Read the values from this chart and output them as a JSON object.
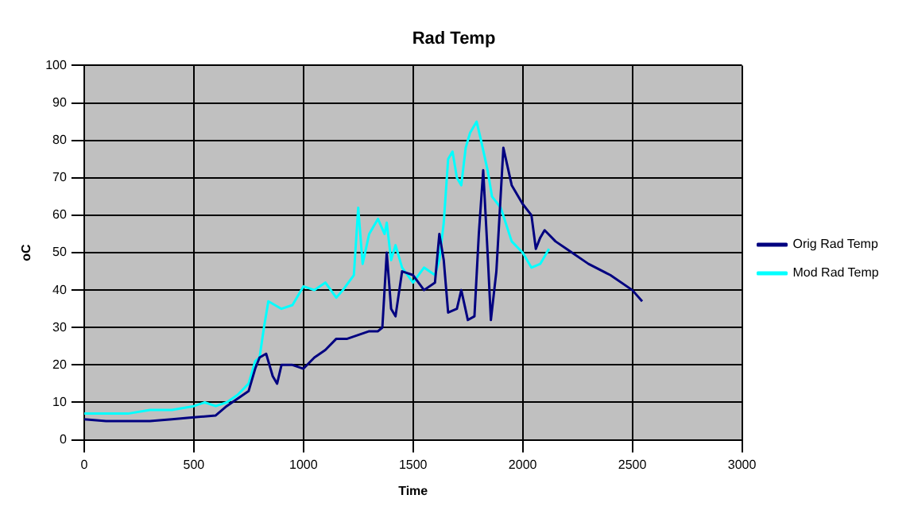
{
  "chart_data": {
    "type": "line",
    "title": "Rad Temp",
    "xlabel": "Time",
    "ylabel": "oC",
    "xlim": [
      0,
      3000
    ],
    "xticks": [
      0,
      500,
      1000,
      1500,
      2000,
      2500,
      3000
    ],
    "ylim": [
      0,
      100
    ],
    "yticks": [
      0,
      10,
      20,
      30,
      40,
      50,
      60,
      70,
      80,
      90,
      100
    ],
    "grid": true,
    "legend": "right",
    "marker": "none",
    "series": [
      {
        "name": "Orig Rad Temp",
        "color": "#000080",
        "x": [
          0,
          100,
          200,
          300,
          400,
          500,
          600,
          650,
          700,
          750,
          780,
          800,
          830,
          860,
          880,
          900,
          950,
          1000,
          1050,
          1100,
          1150,
          1200,
          1250,
          1300,
          1340,
          1360,
          1380,
          1400,
          1420,
          1450,
          1500,
          1550,
          1600,
          1620,
          1640,
          1660,
          1700,
          1720,
          1750,
          1780,
          1800,
          1820,
          1840,
          1855,
          1880,
          1912,
          1950,
          2000,
          2040,
          2060,
          2080,
          2100,
          2150,
          2200,
          2300,
          2400,
          2500,
          2545
        ],
        "values": [
          5.5,
          5,
          5,
          5,
          5.5,
          6,
          6.5,
          9,
          11,
          13,
          19,
          22,
          23,
          17,
          15,
          20,
          20,
          19,
          22,
          24,
          27,
          27,
          28,
          29,
          29,
          30,
          50,
          35,
          33,
          45,
          44,
          40,
          42,
          55,
          48,
          34,
          35,
          40,
          32,
          33,
          55,
          72,
          50,
          32,
          45,
          78,
          68,
          63,
          60,
          51,
          54,
          56,
          53,
          51,
          47,
          44,
          40,
          37
        ]
      },
      {
        "name": "Mod Rad Temp",
        "color": "#00ffff",
        "x": [
          0,
          200,
          300,
          400,
          500,
          550,
          600,
          650,
          700,
          750,
          780,
          800,
          820,
          840,
          870,
          900,
          950,
          1000,
          1050,
          1100,
          1150,
          1180,
          1230,
          1250,
          1270,
          1300,
          1340,
          1370,
          1380,
          1400,
          1420,
          1450,
          1500,
          1550,
          1600,
          1620,
          1640,
          1660,
          1680,
          1700,
          1720,
          1740,
          1760,
          1790,
          1810,
          1840,
          1860,
          1900,
          1950,
          2000,
          2040,
          2080,
          2120
        ],
        "values": [
          7,
          7,
          8,
          8,
          9,
          10,
          9,
          10,
          12,
          15,
          21,
          22,
          30,
          37,
          36,
          35,
          36,
          41,
          40,
          42,
          38,
          40,
          44,
          62,
          47,
          55,
          59,
          55,
          58,
          48,
          52,
          46,
          42,
          46,
          44,
          48,
          58,
          75,
          77,
          70,
          68,
          78,
          82,
          85,
          80,
          72,
          65,
          62,
          53,
          50,
          46,
          47,
          51
        ]
      }
    ]
  }
}
